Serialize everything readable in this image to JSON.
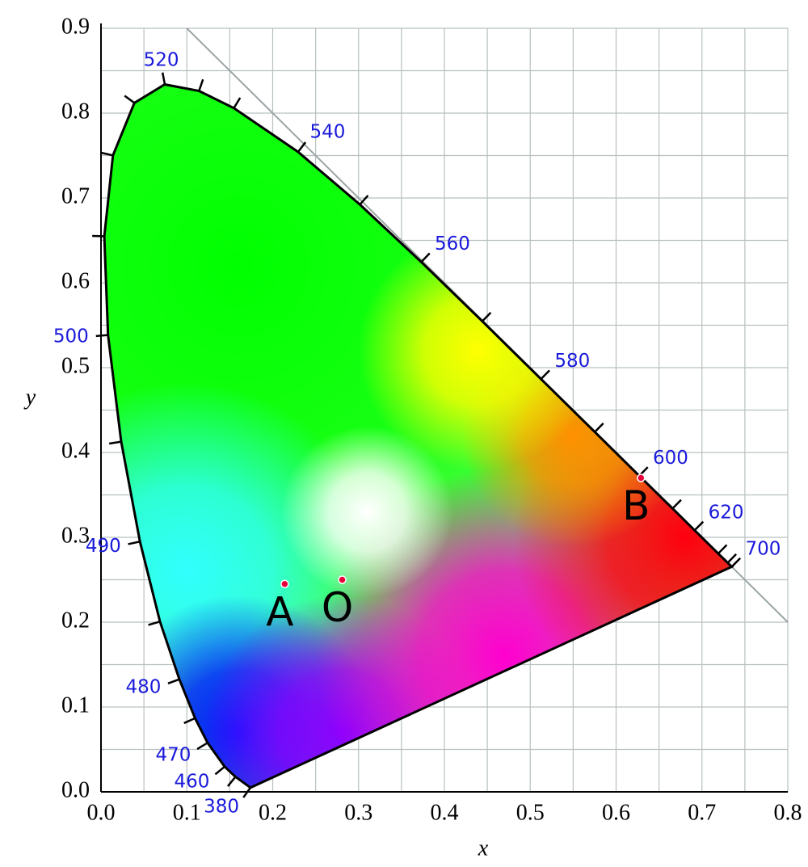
{
  "chart_data": {
    "type": "scatter",
    "xlabel": "x",
    "ylabel": "y",
    "xlim": [
      0,
      0.8
    ],
    "ylim": [
      0,
      0.9
    ],
    "xticks": [
      {
        "value": 0,
        "label": "0.0"
      },
      0.1,
      0.2,
      0.3,
      0.4,
      0.5,
      0.6,
      0.7,
      0.8
    ],
    "yticks": [
      {
        "value": 0,
        "label": "0.0"
      },
      0.1,
      0.2,
      0.3,
      0.4,
      0.5,
      0.6,
      0.7,
      0.8,
      0.9
    ],
    "grid": true,
    "points": {
      "labels": [
        "A",
        "O",
        "B"
      ],
      "x": [
        0.214,
        0.281,
        0.629
      ],
      "y": [
        0.245,
        0.25,
        0.37
      ],
      "color": "#e8003a"
    },
    "spectral_locus": {
      "wavelength_labels": [
        380,
        null,
        460,
        470,
        null,
        480,
        null,
        490,
        null,
        500,
        null,
        null,
        null,
        520,
        null,
        null,
        540,
        null,
        560,
        null,
        580,
        null,
        600,
        null,
        620,
        null,
        null,
        700
      ],
      "x": [
        0.1741,
        0.1566,
        0.144,
        0.1241,
        0.1096,
        0.0913,
        0.0687,
        0.0454,
        0.0235,
        0.0082,
        0.0039,
        0.0139,
        0.0389,
        0.0743,
        0.1142,
        0.1547,
        0.2296,
        0.3016,
        0.3731,
        0.4441,
        0.5125,
        0.5752,
        0.627,
        0.6658,
        0.6915,
        0.719,
        0.73,
        0.7347
      ],
      "y": [
        0.005,
        0.0177,
        0.0297,
        0.0578,
        0.0868,
        0.1327,
        0.2007,
        0.295,
        0.4127,
        0.5384,
        0.6548,
        0.7502,
        0.812,
        0.8338,
        0.8262,
        0.8059,
        0.7543,
        0.6923,
        0.6245,
        0.5547,
        0.4866,
        0.4242,
        0.3725,
        0.334,
        0.3083,
        0.2809,
        0.27,
        0.2653
      ],
      "color": "#000000",
      "label_color": "#1a1adb"
    }
  }
}
